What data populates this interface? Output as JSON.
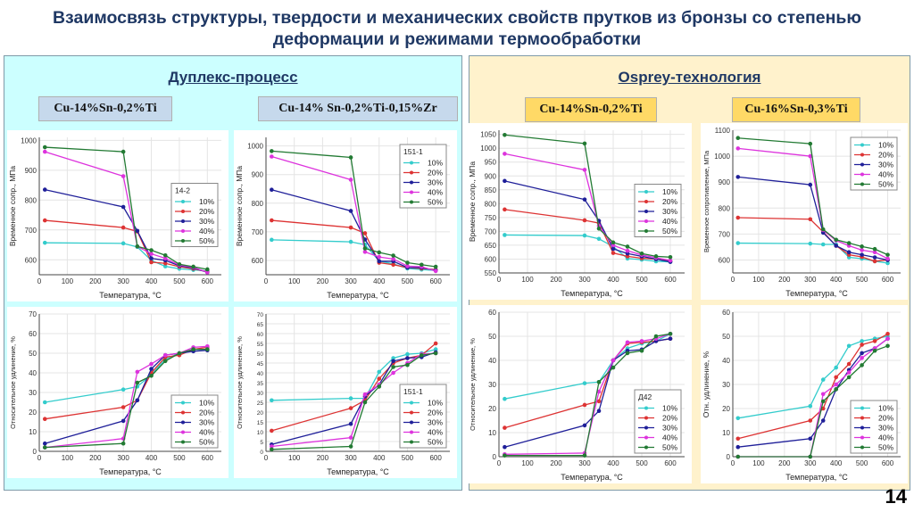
{
  "title": "Взаимосвязь структуры, твердости и механических свойств прутков из бронзы со степенью деформации и режимами термообработки",
  "page_number": "14",
  "colors": {
    "10%": "#33cccc",
    "20%": "#dd3333",
    "30%": "#1f1f99",
    "40%": "#dd33dd",
    "50%": "#227a33"
  },
  "left_panel": {
    "heading": "Дуплекс-процесс",
    "alloys": [
      "Cu-14%Sn-0,2%Ti",
      "Cu-14% Sn-0,2%Ti-0,15%Zr"
    ],
    "background": "#ccffff"
  },
  "right_panel": {
    "heading": "Osprey-технология",
    "alloys": [
      "Cu-14%Sn-0,2%Ti",
      "Cu-16%Sn-0,3%Ti"
    ],
    "background": "#fff2cc"
  },
  "chart_data": [
    {
      "id": "c1",
      "type": "line",
      "xlabel": "Температура, °C",
      "ylabel": "Временное сопр., МПа",
      "xlim": [
        0,
        650
      ],
      "xticks": [
        0,
        100,
        200,
        300,
        400,
        500,
        600
      ],
      "ylim": [
        550,
        1010
      ],
      "yticks": [
        600,
        700,
        800,
        900,
        1000
      ],
      "legend_title": "14-2",
      "legend": "right",
      "grid": true,
      "x": [
        20,
        300,
        350,
        400,
        450,
        500,
        550,
        600
      ],
      "series": [
        {
          "name": "10%",
          "values": [
            657,
            655,
            643,
            598,
            578,
            570,
            566,
            563
          ]
        },
        {
          "name": "20%",
          "values": [
            732,
            708,
            695,
            592,
            588,
            577,
            570,
            560
          ]
        },
        {
          "name": "30%",
          "values": [
            835,
            777,
            697,
            605,
            598,
            580,
            573,
            558
          ]
        },
        {
          "name": "40%",
          "values": [
            962,
            880,
            645,
            620,
            605,
            582,
            575,
            558
          ]
        },
        {
          "name": "50%",
          "values": [
            977,
            962,
            645,
            632,
            615,
            585,
            577,
            568
          ]
        }
      ]
    },
    {
      "id": "c2",
      "type": "line",
      "xlabel": "Температура, °C",
      "ylabel": "Временное сопр., МПа",
      "xlim": [
        0,
        650
      ],
      "xticks": [
        0,
        100,
        200,
        300,
        400,
        500,
        600
      ],
      "ylim": [
        550,
        1030
      ],
      "yticks": [
        600,
        700,
        800,
        900,
        1000
      ],
      "legend_title": "151-1",
      "legend": "top-right",
      "grid": true,
      "x": [
        20,
        300,
        350,
        400,
        450,
        500,
        550,
        600
      ],
      "series": [
        {
          "name": "10%",
          "values": [
            672,
            665,
            655,
            598,
            588,
            572,
            568,
            565
          ]
        },
        {
          "name": "20%",
          "values": [
            740,
            715,
            695,
            592,
            585,
            575,
            572,
            568
          ]
        },
        {
          "name": "30%",
          "values": [
            847,
            773,
            673,
            597,
            597,
            575,
            575,
            565
          ]
        },
        {
          "name": "40%",
          "values": [
            963,
            882,
            630,
            612,
            605,
            580,
            578,
            563
          ]
        },
        {
          "name": "50%",
          "values": [
            982,
            960,
            642,
            628,
            617,
            592,
            585,
            578
          ]
        }
      ]
    },
    {
      "id": "c3",
      "type": "line",
      "xlabel": "Температура, °C",
      "ylabel": "Временное сопр., МПа",
      "xlim": [
        0,
        650
      ],
      "xticks": [
        0,
        100,
        200,
        300,
        400,
        500,
        600
      ],
      "ylim": [
        550,
        1065
      ],
      "yticks": [
        550,
        600,
        650,
        700,
        750,
        800,
        850,
        900,
        950,
        1000,
        1050
      ],
      "legend_title": "",
      "legend": "right",
      "grid": true,
      "x": [
        20,
        300,
        350,
        400,
        450,
        500,
        550,
        600
      ],
      "series": [
        {
          "name": "10%",
          "values": [
            687,
            685,
            673,
            645,
            602,
            598,
            592,
            590
          ]
        },
        {
          "name": "20%",
          "values": [
            779,
            740,
            730,
            622,
            610,
            603,
            600,
            593
          ]
        },
        {
          "name": "30%",
          "values": [
            882,
            815,
            738,
            637,
            620,
            610,
            600,
            590
          ]
        },
        {
          "name": "40%",
          "values": [
            980,
            922,
            720,
            650,
            630,
            615,
            605,
            595
          ]
        },
        {
          "name": "50%",
          "values": [
            1048,
            1017,
            710,
            660,
            645,
            620,
            610,
            607
          ]
        }
      ]
    },
    {
      "id": "c4",
      "type": "line",
      "xlabel": "Температура, °C",
      "ylabel": "Временное сопротивление, МПа",
      "xlim": [
        0,
        650
      ],
      "xticks": [
        0,
        100,
        200,
        300,
        400,
        500,
        600
      ],
      "ylim": [
        550,
        1100
      ],
      "yticks": [
        600,
        700,
        800,
        900,
        1000,
        1100
      ],
      "legend_title": "",
      "legend": "top-right",
      "grid": true,
      "x": [
        20,
        300,
        350,
        400,
        450,
        500,
        550,
        600
      ],
      "series": [
        {
          "name": "10%",
          "values": [
            665,
            663,
            660,
            660,
            610,
            605,
            595,
            588
          ]
        },
        {
          "name": "20%",
          "values": [
            763,
            757,
            708,
            655,
            620,
            612,
            595,
            600
          ]
        },
        {
          "name": "30%",
          "values": [
            920,
            890,
            705,
            655,
            630,
            620,
            610,
            600
          ]
        },
        {
          "name": "40%",
          "values": [
            1030,
            1000,
            715,
            675,
            655,
            638,
            630,
            605
          ]
        },
        {
          "name": "50%",
          "values": [
            1070,
            1048,
            718,
            678,
            665,
            652,
            642,
            620
          ]
        }
      ]
    },
    {
      "id": "c5",
      "type": "line",
      "xlabel": "Температура, °C",
      "ylabel": "Относительное удлинение, %",
      "xlim": [
        0,
        650
      ],
      "xticks": [
        0,
        100,
        200,
        300,
        400,
        500,
        600
      ],
      "ylim": [
        0,
        70
      ],
      "yticks": [
        0,
        10,
        20,
        30,
        40,
        50,
        60,
        70
      ],
      "legend_title": "",
      "legend": "bottom-right",
      "grid": true,
      "x": [
        20,
        300,
        350,
        400,
        450,
        500,
        550,
        600
      ],
      "series": [
        {
          "name": "10%",
          "values": [
            25,
            31.5,
            33,
            39,
            47,
            50,
            52,
            52
          ]
        },
        {
          "name": "20%",
          "values": [
            16.5,
            22.5,
            26,
            40,
            48,
            49,
            52,
            53
          ]
        },
        {
          "name": "30%",
          "values": [
            4,
            15.5,
            26,
            42,
            49,
            50,
            51,
            51.5
          ]
        },
        {
          "name": "40%",
          "values": [
            2,
            6.5,
            40.5,
            44.5,
            49,
            50,
            53,
            53.5
          ]
        },
        {
          "name": "50%",
          "values": [
            2,
            4,
            35,
            38.5,
            46,
            50,
            52,
            52
          ]
        }
      ]
    },
    {
      "id": "c6",
      "type": "line",
      "xlabel": "Температура, °C",
      "ylabel": "Относительное удлинение, %",
      "xlim": [
        0,
        650
      ],
      "xticks": [
        0,
        100,
        200,
        300,
        400,
        500,
        600
      ],
      "ylim": [
        0,
        70
      ],
      "yticks": [
        0,
        5,
        10,
        15,
        20,
        25,
        30,
        35,
        40,
        45,
        50,
        55,
        60,
        65,
        70
      ],
      "legend_title": "151-1",
      "legend": "bottom-right",
      "grid": true,
      "x": [
        20,
        300,
        350,
        400,
        450,
        500,
        550,
        600
      ],
      "series": [
        {
          "name": "10%",
          "values": [
            26,
            27,
            27,
            40.5,
            47.5,
            49.5,
            50,
            52
          ]
        },
        {
          "name": "20%",
          "values": [
            10.5,
            22,
            26,
            37,
            45,
            47.5,
            49,
            55
          ]
        },
        {
          "name": "30%",
          "values": [
            3.5,
            14,
            28,
            34,
            46,
            47.5,
            48,
            50.5
          ]
        },
        {
          "name": "40%",
          "values": [
            2.5,
            7,
            29,
            34,
            40,
            45,
            49.5,
            50
          ]
        },
        {
          "name": "50%",
          "values": [
            1,
            2.5,
            25,
            33,
            43,
            44,
            49,
            50
          ]
        }
      ]
    },
    {
      "id": "c7",
      "type": "line",
      "xlabel": "Температура, °C",
      "ylabel": "Относительное удлинение, %",
      "xlim": [
        0,
        650
      ],
      "xticks": [
        0,
        100,
        200,
        300,
        400,
        500,
        600
      ],
      "ylim": [
        0,
        60
      ],
      "yticks": [
        0,
        10,
        20,
        30,
        40,
        50,
        60
      ],
      "legend_title": "Д42",
      "legend": "bottom-right",
      "grid": true,
      "x": [
        20,
        300,
        350,
        400,
        450,
        500,
        550,
        600
      ],
      "series": [
        {
          "name": "10%",
          "values": [
            24,
            30.5,
            31,
            40,
            45,
            47,
            48,
            51
          ]
        },
        {
          "name": "20%",
          "values": [
            12,
            21.5,
            23,
            40,
            47,
            47.5,
            48,
            49
          ]
        },
        {
          "name": "30%",
          "values": [
            4,
            13,
            19,
            40,
            44,
            44.5,
            48,
            49
          ]
        },
        {
          "name": "40%",
          "values": [
            1,
            1.5,
            27,
            40,
            47.5,
            48,
            49,
            51
          ]
        },
        {
          "name": "50%",
          "values": [
            0.5,
            0.5,
            31,
            37,
            43,
            44,
            50,
            51
          ]
        }
      ]
    },
    {
      "id": "c8",
      "type": "line",
      "xlabel": "Температура, °C",
      "ylabel": "Отн. удлинение, %",
      "xlim": [
        0,
        650
      ],
      "xticks": [
        0,
        100,
        200,
        300,
        400,
        500,
        600
      ],
      "ylim": [
        0,
        60
      ],
      "yticks": [
        0,
        10,
        20,
        30,
        40,
        50,
        60
      ],
      "legend_title": "",
      "legend": "bottom-right",
      "grid": true,
      "x": [
        20,
        300,
        350,
        400,
        450,
        500,
        550,
        600
      ],
      "series": [
        {
          "name": "10%",
          "values": [
            16,
            21,
            32,
            37,
            46,
            48,
            49,
            50
          ]
        },
        {
          "name": "20%",
          "values": [
            7.5,
            15,
            20,
            33,
            38.5,
            46.5,
            48,
            51
          ]
        },
        {
          "name": "30%",
          "values": [
            4,
            7.5,
            15,
            28,
            36,
            43,
            45,
            49
          ]
        },
        {
          "name": "40%",
          "values": [
            0,
            0,
            26,
            30,
            35,
            41,
            45,
            49
          ]
        },
        {
          "name": "50%",
          "values": [
            0,
            0,
            23,
            28,
            33,
            38,
            44,
            46
          ]
        }
      ]
    }
  ]
}
